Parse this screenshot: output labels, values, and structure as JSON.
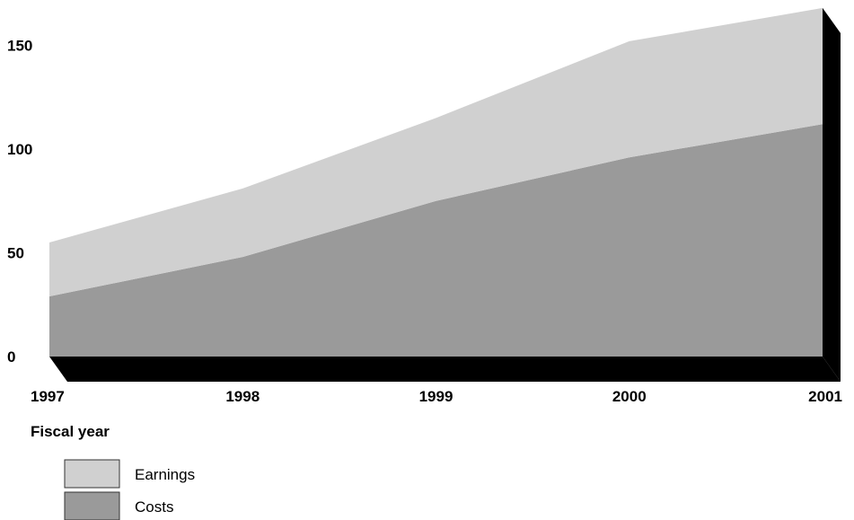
{
  "chart_data": {
    "type": "area",
    "stacked": true,
    "categories": [
      "1997",
      "1998",
      "1999",
      "2000",
      "2001"
    ],
    "series": [
      {
        "name": "Costs",
        "values": [
          29,
          48,
          75,
          96,
          112
        ],
        "color": "#9a9a9a"
      },
      {
        "name": "Earnings",
        "values": [
          26,
          33,
          40,
          56,
          56
        ],
        "color": "#d0d0d0"
      }
    ],
    "xlabel": "Fiscal year",
    "ylabel": "",
    "yticks": [
      0,
      50,
      100,
      150
    ],
    "ylim": [
      0,
      168
    ],
    "grid": false,
    "legend_position": "bottom-left",
    "depth_color": "#000000"
  }
}
